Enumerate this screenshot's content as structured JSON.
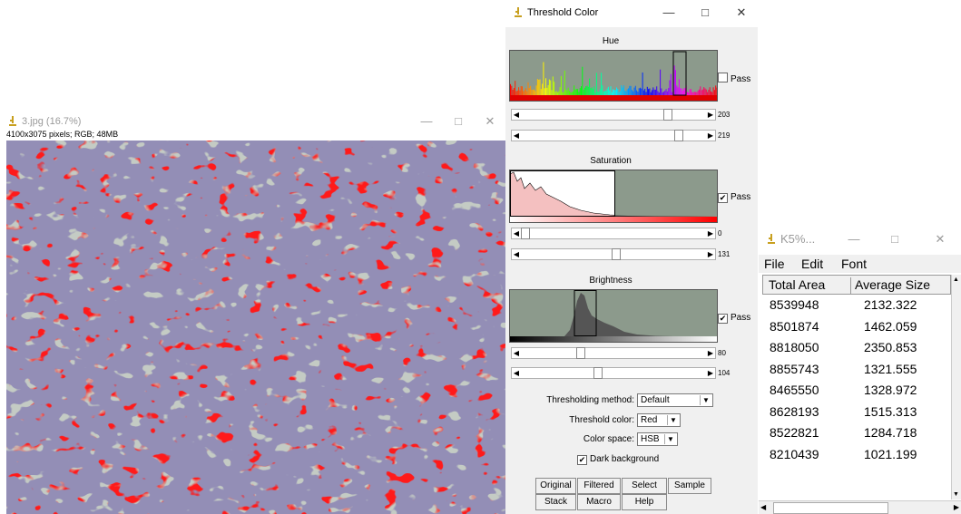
{
  "colors": {
    "threshold_red": "#ff1a1a",
    "tissue": "#8c9a8c",
    "nuclei": "#4a4478"
  },
  "image_window": {
    "title": "3.jpg (16.7%)",
    "info": "4100x3075 pixels; RGB; 48MB",
    "icon": "microscope-icon"
  },
  "threshold_window": {
    "title": "Threshold Color",
    "icon": "microscope-icon",
    "hue": {
      "label": "Hue",
      "pass_label": "Pass",
      "pass_checked": false,
      "min": "203",
      "max": "219",
      "min_fraction": 0.8,
      "max_fraction": 0.86
    },
    "saturation": {
      "label": "Saturation",
      "pass_label": "Pass",
      "pass_checked": true,
      "min": "0",
      "max": "131",
      "min_fraction": 0.0,
      "max_fraction": 0.51
    },
    "brightness": {
      "label": "Brightness",
      "pass_label": "Pass",
      "pass_checked": true,
      "min": "80",
      "max": "104",
      "min_fraction": 0.31,
      "max_fraction": 0.41
    },
    "method_label": "Thresholding method:",
    "method_value": "Default",
    "color_label": "Threshold color:",
    "color_value": "Red",
    "space_label": "Color space:",
    "space_value": "HSB",
    "dark_bg_label": "Dark background",
    "dark_bg_checked": true,
    "buttons_row1": [
      "Original",
      "Filtered",
      "Select",
      "Sample"
    ],
    "buttons_row2": [
      "Stack",
      "Macro",
      "Help"
    ]
  },
  "results_window": {
    "title": "K5%...",
    "icon": "microscope-icon",
    "menu": [
      "File",
      "Edit",
      "Font"
    ],
    "columns": [
      "Total Area",
      "Average Size"
    ],
    "rows": [
      [
        "8539948",
        "2132.322"
      ],
      [
        "8501874",
        "1462.059"
      ],
      [
        "8818050",
        "2350.853"
      ],
      [
        "8855743",
        "1321.555"
      ],
      [
        "8465550",
        "1328.972"
      ],
      [
        "8628193",
        "1515.313"
      ],
      [
        "8522821",
        "1284.718"
      ],
      [
        "8210439",
        "1021.199"
      ]
    ]
  }
}
